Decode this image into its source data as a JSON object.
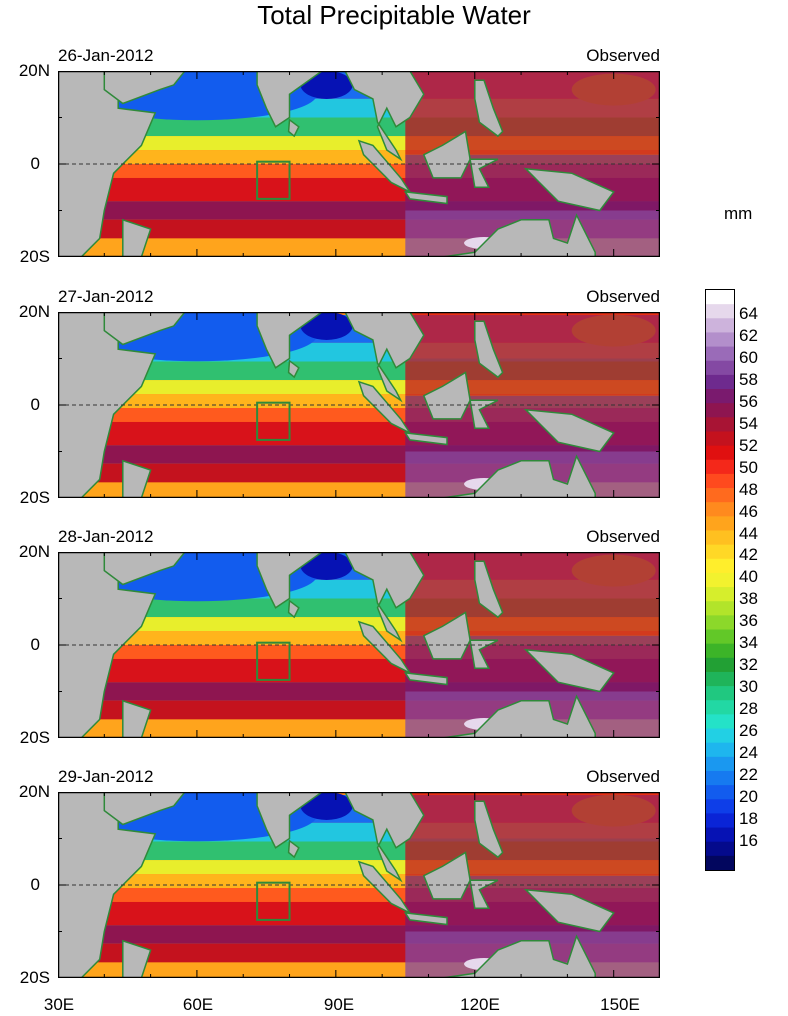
{
  "title": "Total Precipitable Water",
  "panels": [
    {
      "date": "26-Jan-2012",
      "status": "Observed"
    },
    {
      "date": "27-Jan-2012",
      "status": "Observed"
    },
    {
      "date": "28-Jan-2012",
      "status": "Observed"
    },
    {
      "date": "29-Jan-2012",
      "status": "Observed"
    }
  ],
  "lat_labels": {
    "north": "20N",
    "equator": "0",
    "south": "20S"
  },
  "lon_labels": [
    "30E",
    "60E",
    "90E",
    "120E",
    "150E"
  ],
  "colorbar": {
    "unit": "mm",
    "labels": [
      "64",
      "62",
      "60",
      "58",
      "56",
      "54",
      "52",
      "50",
      "48",
      "46",
      "44",
      "42",
      "40",
      "38",
      "36",
      "34",
      "32",
      "30",
      "28",
      "26",
      "24",
      "22",
      "20",
      "18",
      "16"
    ],
    "colors": [
      "#ffffff",
      "#e6d8ec",
      "#cdb3dc",
      "#b38fcb",
      "#9a6bb8",
      "#8449a3",
      "#6e2a8e",
      "#7a1a6e",
      "#8e1550",
      "#a81434",
      "#c4121e",
      "#e01010",
      "#f4281a",
      "#ff4a1e",
      "#ff6a1e",
      "#ff8a1e",
      "#ffa41c",
      "#ffc020",
      "#ffd826",
      "#ffee2c",
      "#f2f22e",
      "#d6ee2c",
      "#b2e42a",
      "#8cd82a",
      "#62c828",
      "#3cb428",
      "#22a034",
      "#1fb45a",
      "#20c880",
      "#22d8a4",
      "#24e2c8",
      "#22d0e4",
      "#1eb6ee",
      "#1a98f0",
      "#167af0",
      "#125cee",
      "#0e3ee8",
      "#0a24d6",
      "#0612b4",
      "#040a8c",
      "#02065e"
    ]
  },
  "colors": {
    "land": "#b8b8b8",
    "coast": "#2f8a3a",
    "box": "#2f8a3a"
  }
}
